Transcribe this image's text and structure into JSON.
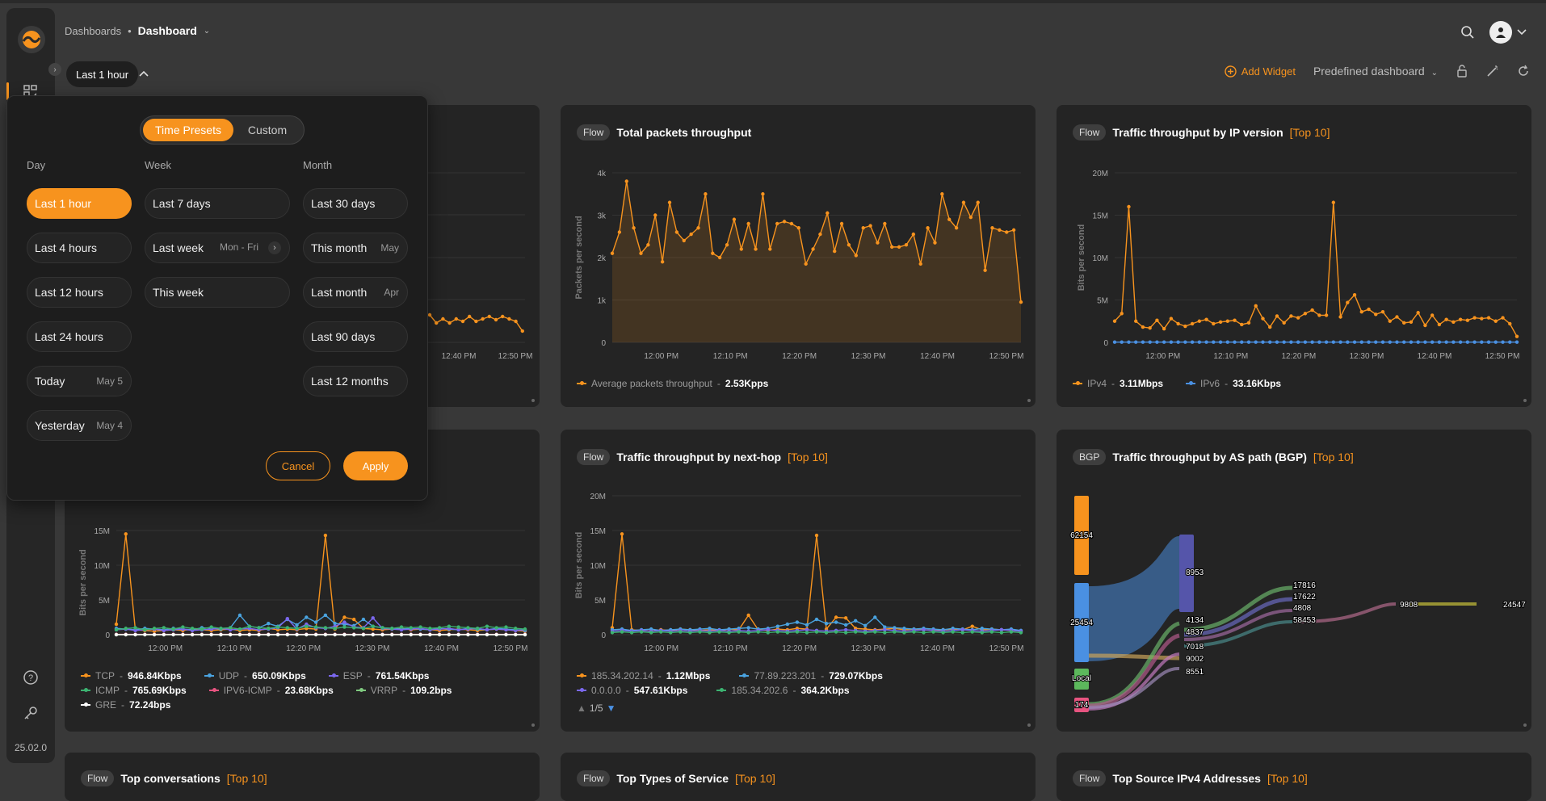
{
  "app": {
    "version": "25.02.0"
  },
  "breadcrumb": {
    "root": "Dashboards",
    "current": "Dashboard"
  },
  "toolbar": {
    "time_range": "Last 1 hour",
    "add_widget": "Add Widget",
    "predefined": "Predefined dashboard"
  },
  "colors": {
    "accent": "#f7931e",
    "ipv6": "#4a90e2",
    "udp": "#4aa3df",
    "esp": "#7b68ee",
    "icmp": "#3cb371",
    "icmp6": "#e75480",
    "vrrp": "#7fc97f",
    "gre": "#ffffff"
  },
  "popup": {
    "tabs": [
      "Time Presets",
      "Custom"
    ],
    "col_day": "Day",
    "col_week": "Week",
    "col_month": "Month",
    "day": [
      {
        "label": "Last 1 hour",
        "sub": ""
      },
      {
        "label": "Last 4 hours",
        "sub": ""
      },
      {
        "label": "Last 12 hours",
        "sub": ""
      },
      {
        "label": "Last 24 hours",
        "sub": ""
      },
      {
        "label": "Today",
        "sub": "May 5"
      },
      {
        "label": "Yesterday",
        "sub": "May 4"
      }
    ],
    "week": [
      {
        "label": "Last 7 days",
        "sub": ""
      },
      {
        "label": "Last week",
        "sub": "Mon - Fri"
      },
      {
        "label": "This week",
        "sub": ""
      }
    ],
    "month": [
      {
        "label": "Last 30 days",
        "sub": ""
      },
      {
        "label": "This month",
        "sub": "May"
      },
      {
        "label": "Last month",
        "sub": "Apr"
      },
      {
        "label": "Last 90 days",
        "sub": ""
      },
      {
        "label": "Last 12 months",
        "sub": ""
      }
    ],
    "cancel": "Cancel",
    "apply": "Apply"
  },
  "cards": {
    "packets": {
      "tag": "Flow",
      "title": "Total packets throughput",
      "suffix": "",
      "ylabel": "Packets per second",
      "legend": [
        {
          "name": "Average packets throughput",
          "value": "2.53Kpps"
        }
      ]
    },
    "ipver": {
      "tag": "Flow",
      "title": "Traffic throughput by IP version",
      "suffix": "[Top 10]",
      "ylabel": "Bits per second",
      "legend": [
        {
          "name": "IPv4",
          "value": "3.11Mbps"
        },
        {
          "name": "IPv6",
          "value": "33.16Kbps"
        }
      ]
    },
    "proto": {
      "ylabel": "Bits per second",
      "legend": [
        {
          "name": "TCP",
          "value": "946.84Kbps"
        },
        {
          "name": "UDP",
          "value": "650.09Kbps"
        },
        {
          "name": "ESP",
          "value": "761.54Kbps"
        },
        {
          "name": "ICMP",
          "value": "765.69Kbps"
        },
        {
          "name": "IPV6-ICMP",
          "value": "23.68Kbps"
        },
        {
          "name": "VRRP",
          "value": "109.2bps"
        },
        {
          "name": "GRE",
          "value": "72.24bps"
        }
      ]
    },
    "nexthop": {
      "tag": "Flow",
      "title": "Traffic throughput by next-hop",
      "suffix": "[Top 10]",
      "ylabel": "Bits per second",
      "legend": [
        {
          "name": "185.34.202.14",
          "value": "1.12Mbps"
        },
        {
          "name": "77.89.223.201",
          "value": "729.07Kbps"
        },
        {
          "name": "0.0.0.0",
          "value": "547.61Kbps"
        },
        {
          "name": "185.34.202.6",
          "value": "364.2Kbps"
        }
      ],
      "pager": "1/5"
    },
    "aspath": {
      "tag": "BGP",
      "title": "Traffic throughput by AS path (BGP)",
      "suffix": "[Top 10]",
      "nodes": [
        "62154",
        "25454",
        "Local",
        "174",
        "8953",
        "4134",
        "4837",
        "7018",
        "9002",
        "8551",
        "17816",
        "17622",
        "4808",
        "58453",
        "9808",
        "24547"
      ]
    },
    "bottom": [
      {
        "tag": "Flow",
        "title": "Top conversations",
        "suffix": "[Top 10]"
      },
      {
        "tag": "Flow",
        "title": "Top Types of Service",
        "suffix": "[Top 10]"
      },
      {
        "tag": "Flow",
        "title": "Top Source IPv4 Addresses",
        "suffix": "[Top 10]"
      }
    ]
  },
  "chart_data": [
    {
      "type": "area",
      "title": "Total packets throughput",
      "ylabel": "Packets per second",
      "ylim": [
        0,
        4000
      ],
      "yticks": [
        "0",
        "1k",
        "2k",
        "3k",
        "4k"
      ],
      "xticks": [
        "12:00 PM",
        "12:10 PM",
        "12:20 PM",
        "12:30 PM",
        "12:40 PM",
        "12:50 PM"
      ],
      "series": [
        {
          "name": "Average packets throughput",
          "values": [
            2100,
            2600,
            3800,
            2700,
            2100,
            2300,
            3000,
            1900,
            3300,
            2600,
            2400,
            2550,
            2700,
            3500,
            2100,
            2000,
            2300,
            2900,
            2200,
            2800,
            2200,
            3500,
            2200,
            2800,
            2850,
            2800,
            2700,
            1850,
            2200,
            2550,
            3050,
            2150,
            2800,
            2300,
            2050,
            2700,
            2750,
            2350,
            2800,
            2250,
            2250,
            2300,
            2550,
            1850,
            2700,
            2350,
            3500,
            2900,
            2700,
            3300,
            2950,
            3300,
            1700,
            2700,
            2650,
            2600,
            2650,
            950
          ]
        }
      ]
    },
    {
      "type": "line",
      "title": "Traffic throughput by IP version",
      "ylabel": "Bits per second",
      "ylim": [
        0,
        20000000
      ],
      "yticks": [
        "0",
        "5M",
        "10M",
        "15M",
        "20M"
      ],
      "xticks": [
        "12:00 PM",
        "12:10 PM",
        "12:20 PM",
        "12:30 PM",
        "12:40 PM",
        "12:50 PM"
      ],
      "series": [
        {
          "name": "IPv4",
          "values": [
            2500000,
            3400000,
            16000000,
            2500000,
            1800000,
            1700000,
            2600000,
            1600000,
            2800000,
            2200000,
            1900000,
            2200000,
            2500000,
            2700000,
            2200000,
            2400000,
            2500000,
            2600000,
            2100000,
            2300000,
            4300000,
            2800000,
            1800000,
            3100000,
            2300000,
            3100000,
            2900000,
            3400000,
            3800000,
            3200000,
            3200000,
            16500000,
            3000000,
            4700000,
            5600000,
            3600000,
            3900000,
            3300000,
            3600000,
            2500000,
            3000000,
            2300000,
            2400000,
            3500000,
            2000000,
            3200000,
            2100000,
            2700000,
            2400000,
            2700000,
            2600000,
            2900000,
            2800000,
            2900000,
            2500000,
            2900000,
            2200000,
            700000
          ]
        },
        {
          "name": "IPv6",
          "values": [
            30000,
            30000,
            30000,
            30000,
            30000,
            30000,
            30000,
            30000,
            30000,
            30000,
            30000,
            30000,
            30000,
            30000,
            30000,
            30000,
            30000,
            30000,
            30000,
            30000,
            30000,
            30000,
            30000,
            30000,
            30000,
            30000,
            30000,
            30000,
            30000,
            30000,
            30000,
            30000,
            30000,
            30000,
            30000,
            30000,
            30000,
            30000,
            30000,
            30000,
            30000,
            30000,
            30000,
            30000,
            30000,
            30000,
            30000,
            30000,
            30000,
            30000,
            30000,
            30000,
            30000,
            30000,
            30000,
            30000,
            30000,
            30000
          ]
        }
      ]
    },
    {
      "type": "line",
      "title": "",
      "ylabel": "Bits per second",
      "ylim": [
        0,
        15000000
      ],
      "yticks": [
        "0",
        "5M",
        "10M",
        "15M"
      ],
      "xticks": [
        "12:00 PM",
        "12:10 PM",
        "12:20 PM",
        "12:30 PM",
        "12:40 PM",
        "12:50 PM"
      ],
      "series": [
        {
          "name": "TCP",
          "values": [
            1500000,
            14500000,
            700000,
            600000,
            500000,
            600000,
            700000,
            600000,
            800000,
            700000,
            600000,
            700000,
            800000,
            600000,
            700000,
            600000,
            900000,
            700000,
            800000,
            700000,
            900000,
            800000,
            14300000,
            800000,
            2500000,
            2200000,
            900000,
            800000,
            700000,
            800000,
            900000,
            700000,
            800000,
            700000,
            600000,
            700000,
            800000,
            700000,
            600000,
            700000,
            800000,
            700000,
            600000,
            500000
          ]
        },
        {
          "name": "UDP",
          "values": [
            900000,
            800000,
            700000,
            900000,
            800000,
            700000,
            900000,
            800000,
            700000,
            1000000,
            900000,
            800000,
            1000000,
            2800000,
            1200000,
            1000000,
            1600000,
            1200000,
            2200000,
            1400000,
            2500000,
            1800000,
            2800000,
            1600000,
            1500000,
            1300000,
            2200000,
            1200000,
            1000000,
            900000,
            800000,
            900000,
            800000,
            700000,
            900000,
            800000,
            700000,
            900000,
            800000,
            700000,
            900000,
            800000,
            700000,
            600000
          ]
        },
        {
          "name": "ESP",
          "values": [
            700000,
            800000,
            600000,
            700000,
            800000,
            600000,
            700000,
            800000,
            600000,
            700000,
            800000,
            900000,
            700000,
            800000,
            900000,
            700000,
            800000,
            1000000,
            2300000,
            800000,
            1500000,
            1000000,
            900000,
            1200000,
            1800000,
            1100000,
            1000000,
            2400000,
            900000,
            800000,
            700000,
            800000,
            900000,
            700000,
            800000,
            900000,
            700000,
            800000,
            900000,
            700000,
            800000,
            700000,
            600000,
            700000
          ]
        },
        {
          "name": "ICMP",
          "values": [
            700000,
            900000,
            1000000,
            700000,
            900000,
            1000000,
            800000,
            1100000,
            900000,
            800000,
            1100000,
            900000,
            1000000,
            800000,
            1200000,
            1000000,
            900000,
            1100000,
            1000000,
            900000,
            1200000,
            1100000,
            1000000,
            900000,
            1100000,
            1000000,
            900000,
            1200000,
            1000000,
            900000,
            1100000,
            1000000,
            1100000,
            900000,
            1000000,
            1200000,
            1100000,
            1000000,
            900000,
            1200000,
            1000000,
            1100000,
            900000,
            800000
          ]
        },
        {
          "name": "IPV6-ICMP",
          "values": [
            50000,
            50000,
            50000,
            50000,
            50000,
            50000,
            50000,
            50000,
            50000,
            50000,
            50000,
            50000,
            50000,
            50000,
            50000,
            50000,
            50000,
            50000,
            50000,
            50000,
            50000,
            50000,
            50000,
            50000,
            50000,
            50000,
            50000,
            50000,
            50000,
            50000,
            50000,
            50000,
            50000,
            50000,
            50000,
            50000,
            50000,
            50000,
            50000,
            50000,
            50000,
            50000,
            50000,
            50000
          ]
        },
        {
          "name": "VRRP",
          "values": [
            100,
            100,
            100,
            100,
            100,
            100,
            100,
            100,
            100,
            100,
            100,
            100,
            100,
            100,
            100,
            100,
            100,
            100,
            100,
            100,
            100,
            100,
            100,
            100,
            100,
            100,
            100,
            100,
            100,
            100,
            100,
            100,
            100,
            100,
            100,
            100,
            100,
            100,
            100,
            100,
            100,
            100,
            100,
            100
          ]
        },
        {
          "name": "GRE",
          "values": [
            100,
            100,
            100,
            100,
            100,
            100,
            100,
            100,
            100,
            100,
            100,
            100,
            100,
            100,
            100,
            100,
            100,
            100,
            100,
            100,
            100,
            100,
            100,
            100,
            100,
            100,
            100,
            100,
            100,
            100,
            100,
            100,
            100,
            100,
            100,
            100,
            100,
            100,
            100,
            100,
            100,
            100,
            100,
            100
          ]
        }
      ]
    },
    {
      "type": "line",
      "title": "Traffic throughput by next-hop",
      "ylabel": "Bits per second",
      "ylim": [
        0,
        20000000
      ],
      "yticks": [
        "0",
        "5M",
        "10M",
        "15M",
        "20M"
      ],
      "xticks": [
        "12:00 PM",
        "12:10 PM",
        "12:20 PM",
        "12:30 PM",
        "12:40 PM",
        "12:50 PM"
      ],
      "series": [
        {
          "name": "185.34.202.14",
          "values": [
            1000000,
            14500000,
            700000,
            600000,
            500000,
            700000,
            600000,
            800000,
            700000,
            600000,
            700000,
            600000,
            800000,
            700000,
            2800000,
            700000,
            600000,
            800000,
            700000,
            900000,
            800000,
            14300000,
            800000,
            2500000,
            2400000,
            900000,
            800000,
            700000,
            800000,
            900000,
            700000,
            800000,
            700000,
            600000,
            700000,
            800000,
            700000,
            1200000,
            700000,
            800000,
            700000,
            600000,
            500000
          ]
        },
        {
          "name": "77.89.223.201",
          "values": [
            700000,
            800000,
            600000,
            700000,
            800000,
            600000,
            700000,
            800000,
            700000,
            800000,
            900000,
            700000,
            800000,
            900000,
            1000000,
            800000,
            900000,
            1200000,
            1500000,
            1800000,
            1400000,
            2200000,
            1600000,
            1800000,
            1400000,
            2000000,
            1300000,
            2500000,
            1100000,
            1000000,
            900000,
            800000,
            900000,
            800000,
            700000,
            900000,
            800000,
            700000,
            900000,
            800000,
            700000,
            800000,
            600000
          ]
        },
        {
          "name": "0.0.0.0",
          "values": [
            500000,
            600000,
            500000,
            600000,
            500000,
            600000,
            500000,
            600000,
            500000,
            600000,
            500000,
            600000,
            500000,
            600000,
            500000,
            600000,
            700000,
            600000,
            500000,
            600000,
            700000,
            600000,
            500000,
            600000,
            700000,
            600000,
            500000,
            600000,
            700000,
            600000,
            500000,
            600000,
            700000,
            600000,
            500000,
            600000,
            700000,
            600000,
            500000,
            600000,
            700000,
            600000,
            500000
          ]
        },
        {
          "name": "185.34.202.6",
          "values": [
            300000,
            400000,
            300000,
            400000,
            300000,
            400000,
            300000,
            400000,
            300000,
            400000,
            300000,
            400000,
            300000,
            400000,
            300000,
            400000,
            300000,
            400000,
            300000,
            400000,
            300000,
            400000,
            300000,
            400000,
            300000,
            400000,
            300000,
            400000,
            300000,
            400000,
            300000,
            400000,
            300000,
            400000,
            300000,
            400000,
            300000,
            400000,
            300000,
            400000,
            300000,
            400000,
            300000
          ]
        }
      ]
    }
  ]
}
